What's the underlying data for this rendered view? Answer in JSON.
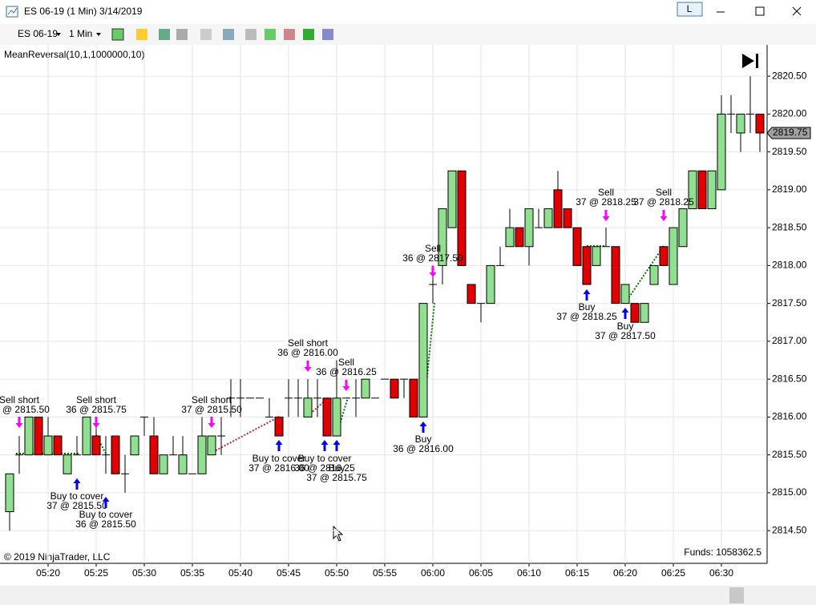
{
  "window": {
    "title": "ES 06-19 (1 Min)  3/14/2019",
    "button": "L"
  },
  "toolbar": {
    "instrument": "ES 06-19",
    "interval": "1 Min"
  },
  "indicator": "MeanReversal(10,1,1000000,10)",
  "copyright": "© 2019 NinjaTrader, LLC",
  "funds": "Funds: 1058362.5",
  "chart_data": {
    "type": "candlestick",
    "up_color": "#90e090",
    "down_color": "#e00000",
    "grid": true,
    "categories": [
      null,
      null,
      null,
      null,
      "05:20",
      null,
      null,
      null,
      null,
      "05:25",
      null,
      null,
      null,
      null,
      "05:30",
      null,
      null,
      null,
      null,
      "05:35",
      null,
      null,
      null,
      null,
      "05:40",
      null,
      null,
      null,
      null,
      "05:45",
      null,
      null,
      null,
      null,
      "05:50",
      null,
      null,
      null,
      null,
      "05:55",
      null,
      null,
      null,
      null,
      "06:00",
      null,
      null,
      null,
      null,
      "06:05",
      null,
      null,
      null,
      null,
      "06:10",
      null,
      null,
      null,
      null,
      "06:15",
      null,
      null,
      null,
      null,
      "06:20",
      null,
      null,
      null,
      null,
      "06:25",
      null,
      null,
      null,
      null,
      "06:30",
      null,
      null,
      null,
      null
    ],
    "open": [
      2814.75,
      2815.5,
      2815.5,
      2816,
      2815.5,
      2815.75,
      2815.25,
      2815.5,
      2815.5,
      2815.75,
      2815.5,
      2815.75,
      2815.25,
      2815.5,
      2816,
      2815.75,
      2815.25,
      2815.5,
      2815.25,
      2815.25,
      2815.25,
      2815.5,
      2815.75,
      2816.25,
      2816.25,
      2816.25,
      2816.25,
      2816,
      2816,
      2816.25,
      2816.25,
      2816,
      2816.25,
      2816.25,
      2815.75,
      2816.25,
      2816.25,
      2816.25,
      2816.25,
      2816.5,
      2816.5,
      2816.5,
      2816.5,
      2816,
      2817.75,
      2818,
      2818.5,
      2819.25,
      2817.75,
      2817.5,
      2817.5,
      2818,
      2818.25,
      2818.5,
      2818.25,
      2818.5,
      2818.5,
      2819,
      2818.75,
      2818.5,
      2818.25,
      2818,
      2818.25,
      2818.25,
      2817.5,
      2817.5,
      2817.25,
      2817.75,
      2818.25,
      2817.75,
      2818.25,
      2818.75,
      2819.25,
      2818.75,
      2819,
      2820,
      2819.75,
      2820,
      2820
    ],
    "high": [
      2815.25,
      2815.75,
      2816,
      2816,
      2816,
      2815.75,
      2815.5,
      2815.75,
      2816,
      2816,
      2815.75,
      2815.75,
      2815.5,
      2815.75,
      2816,
      2816,
      2815.5,
      2815.75,
      2815.75,
      2815.25,
      2816,
      2815.75,
      2816,
      2816.5,
      2816.5,
      2816.25,
      2816.25,
      2816.25,
      2816,
      2816.5,
      2816.5,
      2816.5,
      2816.5,
      2816.25,
      2816.75,
      2816.25,
      2816.5,
      2816.5,
      2816.25,
      2816.5,
      2816.5,
      2816.5,
      2816.5,
      2817.5,
      2818,
      2818.75,
      2819.25,
      2819.25,
      2817.75,
      2817.5,
      2818,
      2818.25,
      2818.75,
      2818.5,
      2818.75,
      2818.75,
      2818.75,
      2819.25,
      2818.75,
      2818.5,
      2818.25,
      2818.25,
      2818.5,
      2818.25,
      2817.75,
      2817.5,
      2817.5,
      2818,
      2818.25,
      2818.5,
      2818.75,
      2819.25,
      2819.25,
      2819.25,
      2820.25,
      2820.25,
      2820,
      2820.5,
      2820
    ],
    "low": [
      2814.5,
      2815.25,
      2815.5,
      2815.5,
      2815.5,
      2815.5,
      2815.25,
      2815.5,
      2815.5,
      2815.5,
      2815.25,
      2815.25,
      2815,
      2815.5,
      2815.75,
      2815.25,
      2815.25,
      2815.5,
      2815.25,
      2815.25,
      2815.25,
      2815.5,
      2815.5,
      2816,
      2816,
      2816.25,
      2816.25,
      2816,
      2815.75,
      2816,
      2816,
      2816,
      2816,
      2815.75,
      2815.75,
      2816.25,
      2816,
      2816.25,
      2816.25,
      2816.5,
      2816.25,
      2816.25,
      2816,
      2816,
      2817.5,
      2817.75,
      2818.5,
      2818,
      2817.5,
      2817.25,
      2817.5,
      2818,
      2818.25,
      2818.25,
      2818,
      2818.5,
      2818.5,
      2818.5,
      2818.5,
      2818,
      2817.75,
      2818,
      2818.25,
      2817.5,
      2817.5,
      2817.25,
      2817.25,
      2817.75,
      2818,
      2817.75,
      2818.25,
      2818.75,
      2818.75,
      2818.75,
      2819,
      2819.75,
      2819.5,
      2819.75,
      2819.5
    ],
    "close": [
      2815.25,
      2815.5,
      2816,
      2815.5,
      2815.75,
      2815.5,
      2815.5,
      2815.5,
      2816,
      2815.5,
      2815.5,
      2815.25,
      2815.25,
      2815.75,
      2816,
      2815.25,
      2815.5,
      2815.5,
      2815.5,
      2815.25,
      2815.75,
      2815.75,
      2815.75,
      2816.25,
      2816.25,
      2816.25,
      2816.25,
      2816,
      2815.75,
      2816.25,
      2816.25,
      2816.25,
      2816.25,
      2815.75,
      2816.25,
      2816.25,
      2816.25,
      2816.5,
      2816.25,
      2816.5,
      2816.25,
      2816.5,
      2816,
      2817.5,
      2817.75,
      2818.75,
      2819.25,
      2818,
      2817.5,
      2817.5,
      2818,
      2818,
      2818.5,
      2818.25,
      2818.75,
      2818.5,
      2818.75,
      2818.5,
      2818.5,
      2818,
      2817.75,
      2818.25,
      2818.25,
      2817.5,
      2817.75,
      2817.25,
      2817.5,
      2818,
      2818,
      2818.5,
      2818.75,
      2819.25,
      2818.75,
      2819.25,
      2820,
      2820,
      2820,
      2820,
      2819.75
    ],
    "ylim": [
      2814.1,
      2820.85
    ],
    "yticks": [
      {
        "value": 2814.5,
        "label": "2814.50"
      },
      {
        "value": 2815,
        "label": "2815.00"
      },
      {
        "value": 2815.5,
        "label": "2815.50"
      },
      {
        "value": 2816,
        "label": "2816.00"
      },
      {
        "value": 2816.5,
        "label": "2816.50"
      },
      {
        "value": 2817,
        "label": "2817.00"
      },
      {
        "value": 2817.5,
        "label": "2817.50"
      },
      {
        "value": 2818,
        "label": "2818.00"
      },
      {
        "value": 2818.5,
        "label": "2818.50"
      },
      {
        "value": 2819,
        "label": "2819.00"
      },
      {
        "value": 2819.5,
        "label": "2819.50"
      },
      {
        "value": 2820,
        "label": "2820.00"
      },
      {
        "value": 2820.5,
        "label": "2820.50"
      }
    ],
    "last_price": {
      "value": 2819.75,
      "label": "2819.75"
    },
    "annotations": [
      [
        "Sell short",
        "36 @ 2815.50"
      ],
      [
        "Buy to cover",
        "37 @ 2815.50"
      ],
      [
        "Sell short",
        "36 @ 2815.75"
      ],
      [
        "Buy to cover",
        "36 @ 2815.50"
      ],
      [
        "Sell short",
        "37 @ 2815.50"
      ],
      [
        "Sell short",
        "36 @ 2816.00"
      ],
      [
        "Buy to cover",
        "37 @ 2816.00"
      ],
      [
        "Buy to cover",
        "36 @ 2816.25"
      ],
      [
        "Buy",
        "37 @ 2815.75"
      ],
      [
        "Sell",
        "36 @ 2816.25"
      ],
      [
        "Buy",
        "36 @ 2816.00"
      ],
      [
        "Sell",
        "36 @ 2817.50"
      ],
      [
        "Sell",
        "37 @ 2818.25"
      ],
      [
        "Buy",
        "37 @ 2818.25"
      ],
      [
        "Buy",
        "37 @ 2817.50"
      ],
      [
        "Sell",
        "37 @ 2818.25"
      ]
    ]
  }
}
